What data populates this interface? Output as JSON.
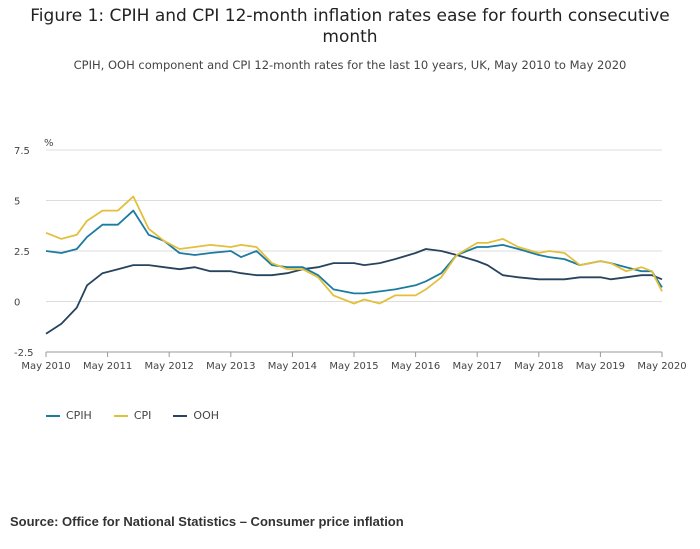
{
  "title_line1": "Figure 1: CPIH and CPI 12-month inflation rates ease for fourth consecutive",
  "title_line2": "month",
  "subtitle": "CPIH, OOH component and CPI 12-month rates for the last 10 years, UK, May 2010 to May 2020",
  "source": "Source: Office for National Statistics – Consumer price inflation",
  "colors": {
    "CPIH": "#1b7ba0",
    "CPI": "#e3bf3e",
    "OOH": "#27435e",
    "grid": "#dddddd"
  },
  "chart_data": {
    "type": "line",
    "ylabel": "%",
    "ylim": [
      -2.5,
      7.5
    ],
    "yticks": [
      -2.5,
      0,
      2.5,
      5,
      7.5
    ],
    "ytick_labels": [
      "-2.5",
      "0",
      "2.5",
      "5",
      "7.5"
    ],
    "xlim": [
      2010.333,
      2020.333
    ],
    "xticks": [
      2010.333,
      2011.333,
      2012.333,
      2013.333,
      2014.333,
      2015.333,
      2016.333,
      2017.333,
      2018.333,
      2019.333,
      2020.333
    ],
    "xtick_labels": [
      "May 2010",
      "May 2011",
      "May 2012",
      "May 2013",
      "May 2014",
      "May 2015",
      "May 2016",
      "May 2017",
      "May 2018",
      "May 2019",
      "May 2020"
    ],
    "grid": true,
    "legend": "bottom-left",
    "series": [
      {
        "name": "CPIH",
        "points": [
          [
            2010.333,
            2.5
          ],
          [
            2010.583,
            2.4
          ],
          [
            2010.833,
            2.6
          ],
          [
            2011.0,
            3.2
          ],
          [
            2011.25,
            3.8
          ],
          [
            2011.5,
            3.8
          ],
          [
            2011.75,
            4.5
          ],
          [
            2012.0,
            3.3
          ],
          [
            2012.25,
            3.0
          ],
          [
            2012.5,
            2.4
          ],
          [
            2012.75,
            2.3
          ],
          [
            2013.0,
            2.4
          ],
          [
            2013.333,
            2.5
          ],
          [
            2013.5,
            2.2
          ],
          [
            2013.75,
            2.5
          ],
          [
            2014.0,
            1.8
          ],
          [
            2014.25,
            1.7
          ],
          [
            2014.5,
            1.7
          ],
          [
            2014.75,
            1.3
          ],
          [
            2015.0,
            0.6
          ],
          [
            2015.333,
            0.4
          ],
          [
            2015.5,
            0.4
          ],
          [
            2015.75,
            0.5
          ],
          [
            2016.0,
            0.6
          ],
          [
            2016.333,
            0.8
          ],
          [
            2016.5,
            1.0
          ],
          [
            2016.75,
            1.4
          ],
          [
            2017.0,
            2.3
          ],
          [
            2017.333,
            2.7
          ],
          [
            2017.5,
            2.7
          ],
          [
            2017.75,
            2.8
          ],
          [
            2018.0,
            2.6
          ],
          [
            2018.333,
            2.3
          ],
          [
            2018.5,
            2.2
          ],
          [
            2018.75,
            2.1
          ],
          [
            2019.0,
            1.8
          ],
          [
            2019.333,
            2.0
          ],
          [
            2019.5,
            1.9
          ],
          [
            2019.75,
            1.7
          ],
          [
            2020.0,
            1.5
          ],
          [
            2020.167,
            1.5
          ],
          [
            2020.333,
            0.7
          ]
        ]
      },
      {
        "name": "CPI",
        "points": [
          [
            2010.333,
            3.4
          ],
          [
            2010.583,
            3.1
          ],
          [
            2010.833,
            3.3
          ],
          [
            2011.0,
            4.0
          ],
          [
            2011.25,
            4.5
          ],
          [
            2011.5,
            4.5
          ],
          [
            2011.75,
            5.2
          ],
          [
            2012.0,
            3.6
          ],
          [
            2012.25,
            3.0
          ],
          [
            2012.5,
            2.6
          ],
          [
            2012.75,
            2.7
          ],
          [
            2013.0,
            2.8
          ],
          [
            2013.333,
            2.7
          ],
          [
            2013.5,
            2.8
          ],
          [
            2013.75,
            2.7
          ],
          [
            2014.0,
            1.9
          ],
          [
            2014.25,
            1.6
          ],
          [
            2014.5,
            1.6
          ],
          [
            2014.75,
            1.2
          ],
          [
            2015.0,
            0.3
          ],
          [
            2015.333,
            -0.1
          ],
          [
            2015.5,
            0.1
          ],
          [
            2015.75,
            -0.1
          ],
          [
            2016.0,
            0.3
          ],
          [
            2016.333,
            0.3
          ],
          [
            2016.5,
            0.6
          ],
          [
            2016.75,
            1.2
          ],
          [
            2017.0,
            2.3
          ],
          [
            2017.333,
            2.9
          ],
          [
            2017.5,
            2.9
          ],
          [
            2017.75,
            3.1
          ],
          [
            2018.0,
            2.7
          ],
          [
            2018.333,
            2.4
          ],
          [
            2018.5,
            2.5
          ],
          [
            2018.75,
            2.4
          ],
          [
            2019.0,
            1.8
          ],
          [
            2019.333,
            2.0
          ],
          [
            2019.5,
            1.9
          ],
          [
            2019.75,
            1.5
          ],
          [
            2020.0,
            1.7
          ],
          [
            2020.167,
            1.5
          ],
          [
            2020.333,
            0.5
          ]
        ]
      },
      {
        "name": "OOH",
        "points": [
          [
            2010.333,
            -1.6
          ],
          [
            2010.583,
            -1.1
          ],
          [
            2010.833,
            -0.3
          ],
          [
            2011.0,
            0.8
          ],
          [
            2011.25,
            1.4
          ],
          [
            2011.5,
            1.6
          ],
          [
            2011.75,
            1.8
          ],
          [
            2012.0,
            1.8
          ],
          [
            2012.25,
            1.7
          ],
          [
            2012.5,
            1.6
          ],
          [
            2012.75,
            1.7
          ],
          [
            2013.0,
            1.5
          ],
          [
            2013.333,
            1.5
          ],
          [
            2013.5,
            1.4
          ],
          [
            2013.75,
            1.3
          ],
          [
            2014.0,
            1.3
          ],
          [
            2014.25,
            1.4
          ],
          [
            2014.5,
            1.6
          ],
          [
            2014.75,
            1.7
          ],
          [
            2015.0,
            1.9
          ],
          [
            2015.333,
            1.9
          ],
          [
            2015.5,
            1.8
          ],
          [
            2015.75,
            1.9
          ],
          [
            2016.0,
            2.1
          ],
          [
            2016.333,
            2.4
          ],
          [
            2016.5,
            2.6
          ],
          [
            2016.75,
            2.5
          ],
          [
            2017.0,
            2.3
          ],
          [
            2017.333,
            2.0
          ],
          [
            2017.5,
            1.8
          ],
          [
            2017.75,
            1.3
          ],
          [
            2018.0,
            1.2
          ],
          [
            2018.333,
            1.1
          ],
          [
            2018.5,
            1.1
          ],
          [
            2018.75,
            1.1
          ],
          [
            2019.0,
            1.2
          ],
          [
            2019.333,
            1.2
          ],
          [
            2019.5,
            1.1
          ],
          [
            2019.75,
            1.2
          ],
          [
            2020.0,
            1.3
          ],
          [
            2020.167,
            1.3
          ],
          [
            2020.333,
            1.1
          ]
        ]
      }
    ]
  }
}
